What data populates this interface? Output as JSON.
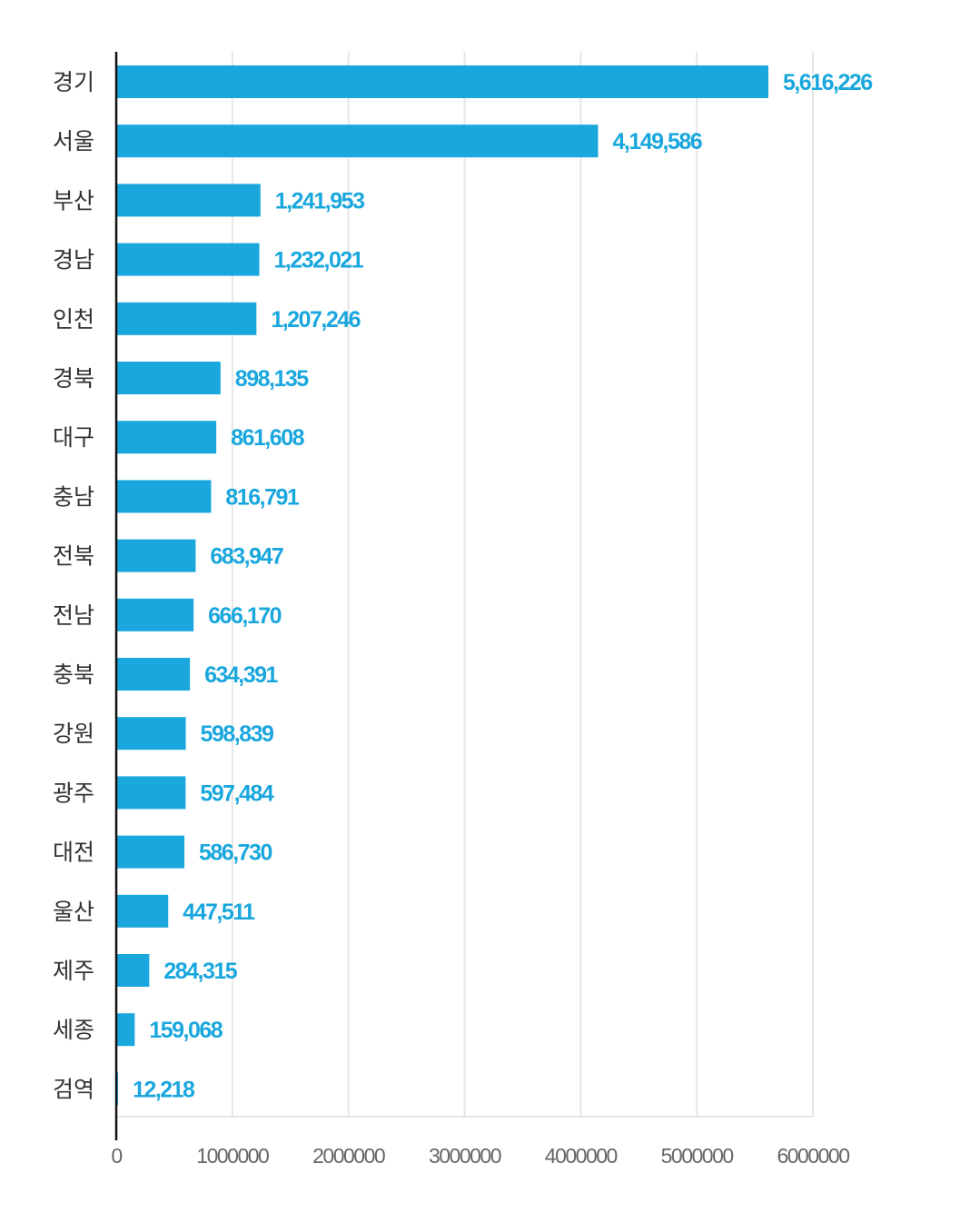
{
  "chart_data": {
    "type": "bar",
    "orientation": "horizontal",
    "categories": [
      "경기",
      "서울",
      "부산",
      "경남",
      "인천",
      "경북",
      "대구",
      "충남",
      "전북",
      "전남",
      "충북",
      "강원",
      "광주",
      "대전",
      "울산",
      "제주",
      "세종",
      "검역"
    ],
    "values": [
      5616226,
      4149586,
      1241953,
      1232021,
      1207246,
      898135,
      861608,
      816791,
      683947,
      666170,
      634391,
      598839,
      597484,
      586730,
      447511,
      284315,
      159068,
      12218
    ],
    "value_labels": [
      "5,616,226",
      "4,149,586",
      "1,241,953",
      "1,232,021",
      "1,207,246",
      "898,135",
      "861,608",
      "816,791",
      "683,947",
      "666,170",
      "634,391",
      "598,839",
      "597,484",
      "586,730",
      "447,511",
      "284,315",
      "159,068",
      "12,218"
    ],
    "xticks": [
      "0",
      "1000000",
      "2000000",
      "3000000",
      "4000000",
      "5000000",
      "6000000"
    ],
    "xlim": [
      0,
      6000000
    ],
    "title": "",
    "xlabel": "",
    "ylabel": "",
    "grid": "vertical",
    "bar_color": "#1aa7dd",
    "label_color": "#1aa7dd"
  }
}
